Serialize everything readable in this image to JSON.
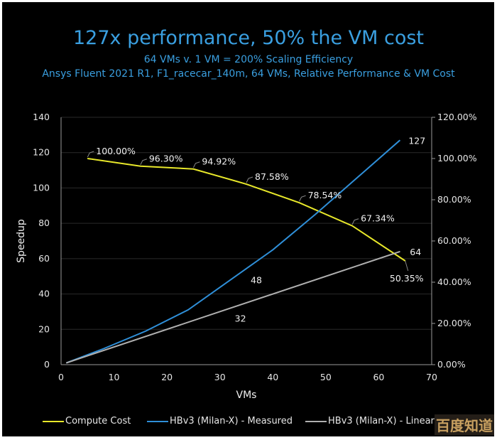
{
  "chart_data": {
    "type": "line",
    "title": "127x performance, 50% the VM cost",
    "subtitle": "64 VMs v. 1 VM = 200% Scaling Efficiency",
    "subtitle2": "Ansys Fluent 2021 R1, F1_racecar_140m, 64 VMs, Relative Performance & VM Cost",
    "xlabel": "VMs",
    "ylabel": "Speedup",
    "xlim": [
      0,
      70
    ],
    "ylim": [
      0,
      140
    ],
    "y2lim": [
      0,
      120
    ],
    "x_ticks": [
      "0",
      "10",
      "20",
      "30",
      "40",
      "50",
      "60",
      "70"
    ],
    "y_ticks": [
      "0",
      "20",
      "40",
      "60",
      "80",
      "100",
      "120",
      "140"
    ],
    "y2_ticks": [
      "0.00%",
      "20.00%",
      "40.00%",
      "60.00%",
      "80.00%",
      "100.00%",
      "120.00%"
    ],
    "grid": true,
    "legend_position": "bottom",
    "series": [
      {
        "name": "Compute Cost",
        "axis": "right",
        "color": "#e8e82a",
        "x": [
          5,
          15,
          25,
          35,
          45,
          55,
          65
        ],
        "y": [
          100.0,
          96.3,
          94.92,
          87.58,
          78.54,
          67.34,
          50.35
        ],
        "labels": [
          "100.00%",
          "96.30%",
          "94.92%",
          "87.58%",
          "78.54%",
          "67.34%",
          "50.35%"
        ]
      },
      {
        "name": "HBv3 (Milan-X) - Measured",
        "axis": "left",
        "color": "#2f8fd8",
        "x": [
          1,
          8,
          16,
          24,
          32,
          40,
          48,
          56,
          64
        ],
        "y": [
          1,
          9,
          19,
          31,
          48,
          65,
          85,
          106,
          127
        ],
        "labels": {
          "4": "48",
          "8": "127"
        }
      },
      {
        "name": "HBv3 (Milan-X) - Linear",
        "axis": "left",
        "color": "#b0b0b0",
        "x": [
          1,
          32,
          64
        ],
        "y": [
          1,
          32,
          64
        ],
        "labels": {
          "1": "32",
          "2": "64"
        }
      }
    ]
  },
  "legend": {
    "items": [
      {
        "label": "Compute Cost",
        "color": "#e8e82a"
      },
      {
        "label": "HBv3 (Milan-X) - Measured",
        "color": "#2f8fd8"
      },
      {
        "label": "HBv3 (Milan-X) - Linear",
        "color": "#b0b0b0"
      }
    ]
  },
  "watermark": "百度知道"
}
